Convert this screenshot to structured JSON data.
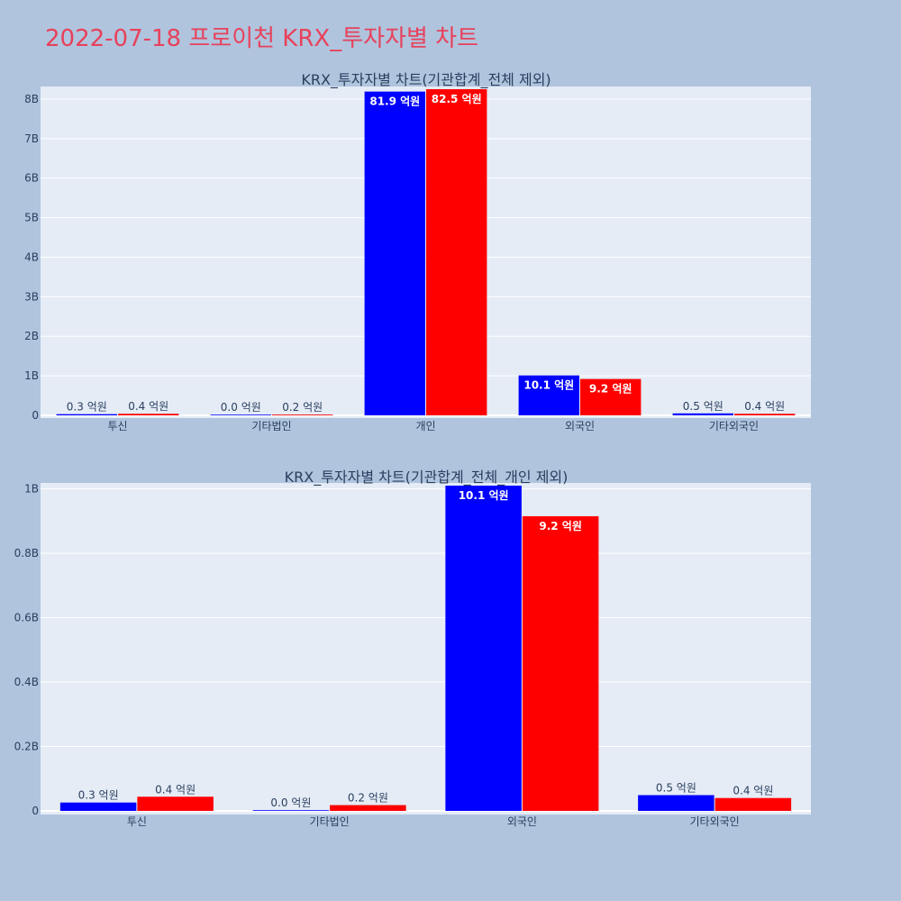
{
  "page_title": "2022-07-18 프로이천 KRX_투자자별 차트",
  "colors": {
    "background": "#b0c4de",
    "plot_bg": "#e5ecf6",
    "title": "#e8415a",
    "series1": "#0000ff",
    "series2": "#ff0000"
  },
  "chart_data": [
    {
      "type": "bar",
      "title": "KRX_투자자별 차트(기관합계_전체 제외)",
      "categories": [
        "투신",
        "기타법인",
        "개인",
        "외국인",
        "기타외국인"
      ],
      "ylim": [
        0,
        8.25
      ],
      "yticks": [
        0,
        1,
        2,
        3,
        4,
        5,
        6,
        7,
        8
      ],
      "ytick_labels": [
        "0",
        "1B",
        "2B",
        "3B",
        "4B",
        "5B",
        "6B",
        "7B",
        "8B"
      ],
      "grid": true,
      "series": [
        {
          "color": "#0000ff",
          "values": [
            0.03,
            0.0,
            8.19,
            1.01,
            0.05
          ],
          "labels": [
            "0.3 억원",
            "0.0 억원",
            "81.9 억원",
            "10.1 억원",
            "0.5 억원"
          ]
        },
        {
          "color": "#ff0000",
          "values": [
            0.04,
            0.02,
            8.25,
            0.92,
            0.04
          ],
          "labels": [
            "0.4 억원",
            "0.2 억원",
            "82.5 억원",
            "9.2 억원",
            "0.4 억원"
          ]
        }
      ]
    },
    {
      "type": "bar",
      "title": "KRX_투자자별 차트(기관합계_전체_개인 제외)",
      "categories": [
        "투신",
        "기타법인",
        "외국인",
        "기타외국인"
      ],
      "ylim": [
        0,
        1.01
      ],
      "yticks": [
        0,
        0.2,
        0.4,
        0.6,
        0.8,
        1.0
      ],
      "ytick_labels": [
        "0",
        "0.2B",
        "0.4B",
        "0.6B",
        "0.8B",
        "1B"
      ],
      "grid": true,
      "series": [
        {
          "color": "#0000ff",
          "values": [
            0.026,
            0.0,
            1.01,
            0.049
          ],
          "labels": [
            "0.3 억원",
            "0.0 억원",
            "10.1 억원",
            "0.5 억원"
          ]
        },
        {
          "color": "#ff0000",
          "values": [
            0.044,
            0.018,
            0.915,
            0.04
          ],
          "labels": [
            "0.4 억원",
            "0.2 억원",
            "9.2 억원",
            "0.4 억원"
          ]
        }
      ]
    }
  ]
}
